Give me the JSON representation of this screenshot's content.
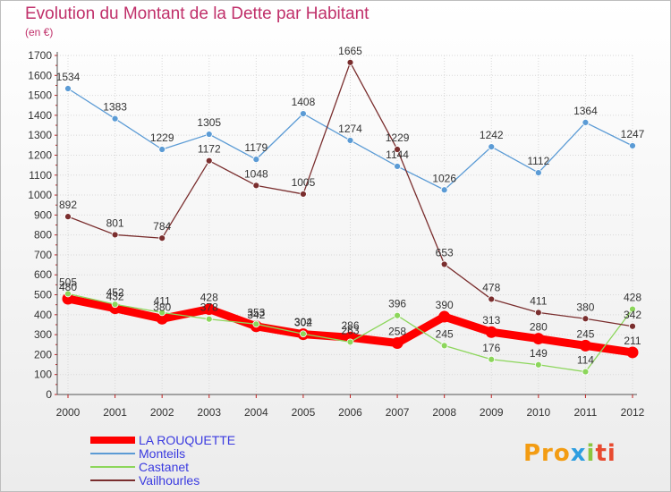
{
  "title": "Evolution du Montant de la Dette par Habitant",
  "subtitle": "(en €)",
  "logo_text": "Proxiti",
  "chart_data": {
    "type": "line",
    "title": "Evolution du Montant de la Dette par Habitant",
    "ylabel": "(en €)",
    "xlabel": "",
    "ylim": [
      0,
      1700
    ],
    "yticks": [
      0,
      100,
      200,
      300,
      400,
      500,
      600,
      700,
      800,
      900,
      1000,
      1100,
      1200,
      1300,
      1400,
      1500,
      1600,
      1700
    ],
    "categories": [
      "2000",
      "2001",
      "2002",
      "2003",
      "2004",
      "2005",
      "2006",
      "2007",
      "2008",
      "2009",
      "2010",
      "2011",
      "2012"
    ],
    "grid": true,
    "legend_position": "bottom-left",
    "series": [
      {
        "name": "LA ROUQUETTE",
        "color": "#ff0000",
        "emphasis": true,
        "values": [
          480,
          432,
          380,
          428,
          342,
          302,
          286,
          258,
          390,
          313,
          280,
          245,
          211
        ]
      },
      {
        "name": "Monteils",
        "color": "#5b9bd5",
        "values": [
          1534,
          1383,
          1229,
          1305,
          1179,
          1408,
          1274,
          1144,
          1026,
          1242,
          1112,
          1364,
          1247
        ]
      },
      {
        "name": "Castanet",
        "color": "#8cd65b",
        "values": [
          505,
          452,
          411,
          378,
          353,
          304,
          263,
          396,
          245,
          176,
          149,
          114,
          428
        ]
      },
      {
        "name": "Vailhourles",
        "color": "#7a2e2e",
        "values": [
          892,
          801,
          784,
          1172,
          1048,
          1005,
          1665,
          1229,
          653,
          478,
          411,
          380,
          342
        ]
      }
    ]
  }
}
